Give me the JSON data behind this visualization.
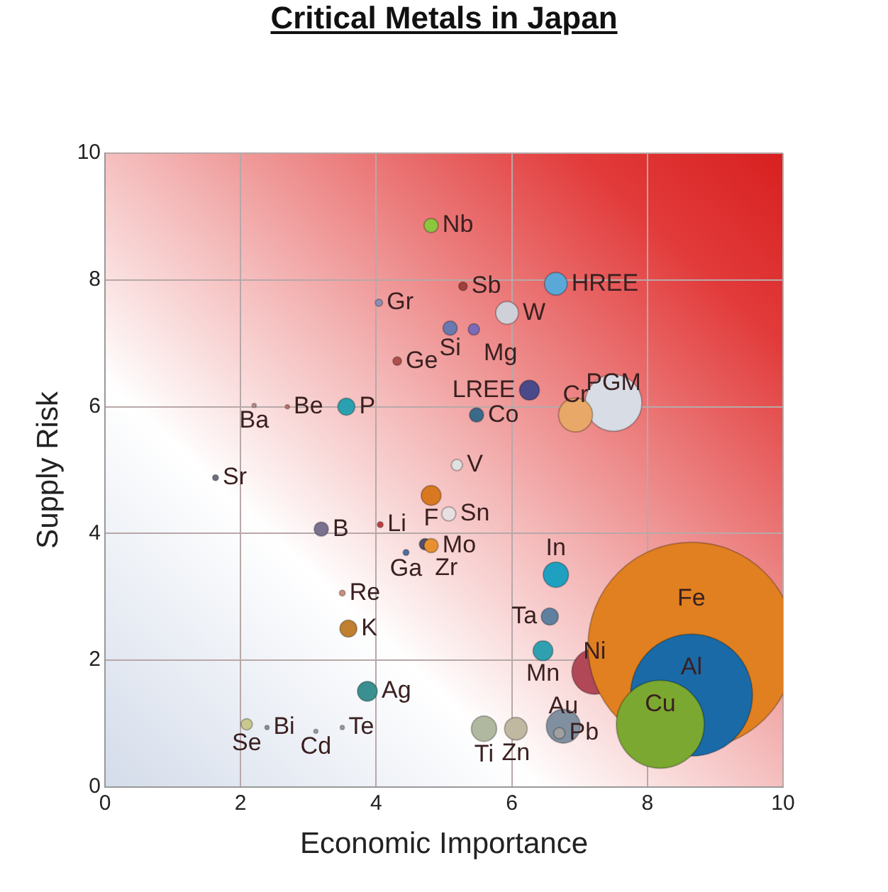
{
  "chart_data": {
    "type": "bubble",
    "title": "Critical Metals in Japan",
    "xlabel": "Economic Importance",
    "ylabel": "Supply Risk",
    "xlim": [
      0,
      10
    ],
    "ylim": [
      0,
      10
    ],
    "xticks": [
      0,
      2,
      4,
      6,
      8,
      10
    ],
    "yticks": [
      0,
      2,
      4,
      6,
      8,
      10
    ],
    "grid": true,
    "legend": false,
    "x": [
      4.81,
      5.28,
      6.65,
      4.04,
      5.93,
      5.09,
      5.44,
      4.31,
      6.26,
      7.5,
      6.94,
      5.48,
      3.56,
      2.69,
      2.2,
      1.63,
      5.19,
      4.81,
      5.07,
      4.06,
      3.19,
      4.72,
      4.81,
      4.44,
      3.5,
      3.59,
      6.65,
      6.56,
      6.46,
      7.22,
      8.65,
      8.65,
      8.19,
      3.87,
      2.09,
      2.39,
      3.11,
      3.5,
      5.59,
      6.06,
      6.76,
      6.7
    ],
    "values": [
      8.86,
      7.9,
      7.94,
      7.64,
      7.48,
      7.24,
      7.22,
      6.72,
      6.26,
      6.06,
      5.87,
      5.87,
      6.0,
      6.0,
      6.02,
      4.88,
      5.08,
      4.6,
      4.31,
      4.14,
      4.07,
      3.83,
      3.81,
      3.7,
      3.06,
      2.5,
      3.35,
      2.69,
      2.15,
      1.82,
      2.23,
      1.45,
      0.99,
      1.51,
      0.99,
      0.94,
      0.88,
      0.94,
      0.92,
      0.92,
      0.96,
      0.85
    ],
    "sizes": [
      0.0047,
      0.0017,
      0.012,
      0.0012,
      0.012,
      0.0047,
      0.003,
      0.0017,
      0.0092,
      0.075,
      0.027,
      0.0047,
      0.0068,
      0.0004,
      0.0004,
      0.0008,
      0.003,
      0.0092,
      0.0047,
      0.0008,
      0.0047,
      0.003,
      0.0047,
      0.0008,
      0.0008,
      0.0068,
      0.015,
      0.0068,
      0.0092,
      0.048,
      1,
      0.347,
      0.18,
      0.0092,
      0.003,
      0.0004,
      0.0004,
      0.0004,
      0.015,
      0.012,
      0.027,
      0.003
    ],
    "colors": [
      "#8cc63f",
      "#a0403c",
      "#5aa8d8",
      "#8a8fb8",
      "#d0d0d8",
      "#6a7ab0",
      "#7a6ab8",
      "#b0504c",
      "#4a4a8a",
      "#d8dce4",
      "#e8a868",
      "#3a6a8a",
      "#2aa0b0",
      "#c87070",
      "#c09090",
      "#707080",
      "#e0e0e0",
      "#d87820",
      "#e8e0e0",
      "#c04040",
      "#7a7090",
      "#505070",
      "#e89030",
      "#5070a0",
      "#d09080",
      "#c08030",
      "#20a0c0",
      "#6080a0",
      "#30a0b0",
      "#b04858",
      "#e08020",
      "#1a6aa8",
      "#7aa830",
      "#3a9090",
      "#c8c890",
      "#9090a0",
      "#a0a0a0",
      "#a0a0a0",
      "#b0b8a0",
      "#c0b8a0",
      "#8090a0",
      "#a0a0a0"
    ],
    "annotations": [
      {
        "text": "Nb",
        "x": 4.81,
        "y": 8.86
      },
      {
        "text": "Sb",
        "x": 5.28,
        "y": 7.9
      },
      {
        "text": "HREE",
        "x": 6.65,
        "y": 7.94
      },
      {
        "text": "Gr",
        "x": 4.04,
        "y": 7.64
      },
      {
        "text": "W",
        "x": 5.93,
        "y": 7.48
      },
      {
        "text": "Si",
        "x": 5.09,
        "y": 7.24
      },
      {
        "text": "Mg",
        "x": 5.44,
        "y": 7.22
      },
      {
        "text": "Ge",
        "x": 4.31,
        "y": 6.72
      },
      {
        "text": "LREE",
        "x": 6.26,
        "y": 6.26
      },
      {
        "text": "PGM",
        "x": 7.5,
        "y": 6.06
      },
      {
        "text": "Cr",
        "x": 6.94,
        "y": 5.87
      },
      {
        "text": "Co",
        "x": 5.48,
        "y": 5.87
      },
      {
        "text": "P",
        "x": 3.56,
        "y": 6.0
      },
      {
        "text": "Be",
        "x": 2.69,
        "y": 6.0
      },
      {
        "text": "Ba",
        "x": 2.2,
        "y": 6.02
      },
      {
        "text": "Sr",
        "x": 1.63,
        "y": 4.88
      },
      {
        "text": "V",
        "x": 5.19,
        "y": 5.08
      },
      {
        "text": "F",
        "x": 4.81,
        "y": 4.6
      },
      {
        "text": "Sn",
        "x": 5.07,
        "y": 4.31
      },
      {
        "text": "Li",
        "x": 4.06,
        "y": 4.14
      },
      {
        "text": "B",
        "x": 3.19,
        "y": 4.07
      },
      {
        "text": "Zr",
        "x": 4.72,
        "y": 3.83
      },
      {
        "text": "Mo",
        "x": 4.81,
        "y": 3.81
      },
      {
        "text": "Ga",
        "x": 4.44,
        "y": 3.7
      },
      {
        "text": "Re",
        "x": 3.5,
        "y": 3.06
      },
      {
        "text": "K",
        "x": 3.59,
        "y": 2.5
      },
      {
        "text": "In",
        "x": 6.65,
        "y": 3.35
      },
      {
        "text": "Ta",
        "x": 6.56,
        "y": 2.69
      },
      {
        "text": "Mn",
        "x": 6.46,
        "y": 2.15
      },
      {
        "text": "Ni",
        "x": 7.22,
        "y": 1.82
      },
      {
        "text": "Fe",
        "x": 8.65,
        "y": 2.23
      },
      {
        "text": "Al",
        "x": 8.65,
        "y": 1.45
      },
      {
        "text": "Cu",
        "x": 8.19,
        "y": 0.99
      },
      {
        "text": "Ag",
        "x": 3.87,
        "y": 1.51
      },
      {
        "text": "Se",
        "x": 2.09,
        "y": 0.99
      },
      {
        "text": "Bi",
        "x": 2.39,
        "y": 0.94
      },
      {
        "text": "Cd",
        "x": 3.11,
        "y": 0.88
      },
      {
        "text": "Te",
        "x": 3.5,
        "y": 0.94
      },
      {
        "text": "Ti",
        "x": 5.59,
        "y": 0.92
      },
      {
        "text": "Zn",
        "x": 6.06,
        "y": 0.92
      },
      {
        "text": "Au",
        "x": 6.76,
        "y": 0.96
      },
      {
        "text": "Pb",
        "x": 6.7,
        "y": 0.85
      }
    ]
  }
}
